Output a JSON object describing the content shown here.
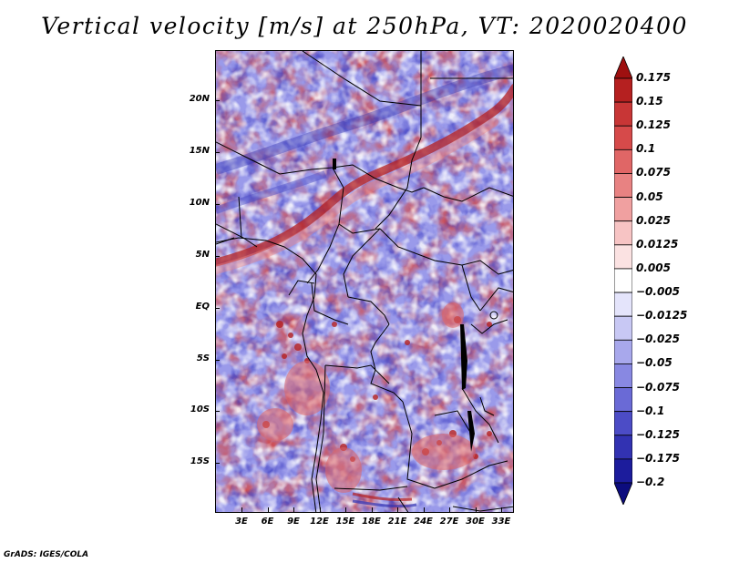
{
  "title": "Vertical velocity [m/s] at 250hPa, VT: 2020020400",
  "map": {
    "lat_labels": [
      "20N",
      "15N",
      "10N",
      "5N",
      "EQ",
      "5S",
      "10S",
      "15S"
    ],
    "lon_labels": [
      "3E",
      "6E",
      "9E",
      "12E",
      "15E",
      "18E",
      "21E",
      "24E",
      "27E",
      "30E",
      "33E"
    ]
  },
  "colorbar": {
    "labels": [
      "0.175",
      "0.15",
      "0.125",
      "0.1",
      "0.075",
      "0.05",
      "0.025",
      "0.0125",
      "0.005",
      "−0.005",
      "−0.0125",
      "−0.025",
      "−0.05",
      "−0.075",
      "−0.1",
      "−0.125",
      "−0.175",
      "−0.2"
    ],
    "colors": [
      "#9e1010",
      "#b52020",
      "#c83636",
      "#d64a4a",
      "#e06666",
      "#e88282",
      "#f0a0a0",
      "#f7c4c4",
      "#fbe2e2",
      "#ffffff",
      "#e4e4fb",
      "#c8c8f4",
      "#a8a8ec",
      "#8888e2",
      "#6a6ad6",
      "#4c4cc6",
      "#3232b2",
      "#1c1c9c",
      "#0c0c7e"
    ]
  },
  "credit": "GrADS: IGES/COLA"
}
